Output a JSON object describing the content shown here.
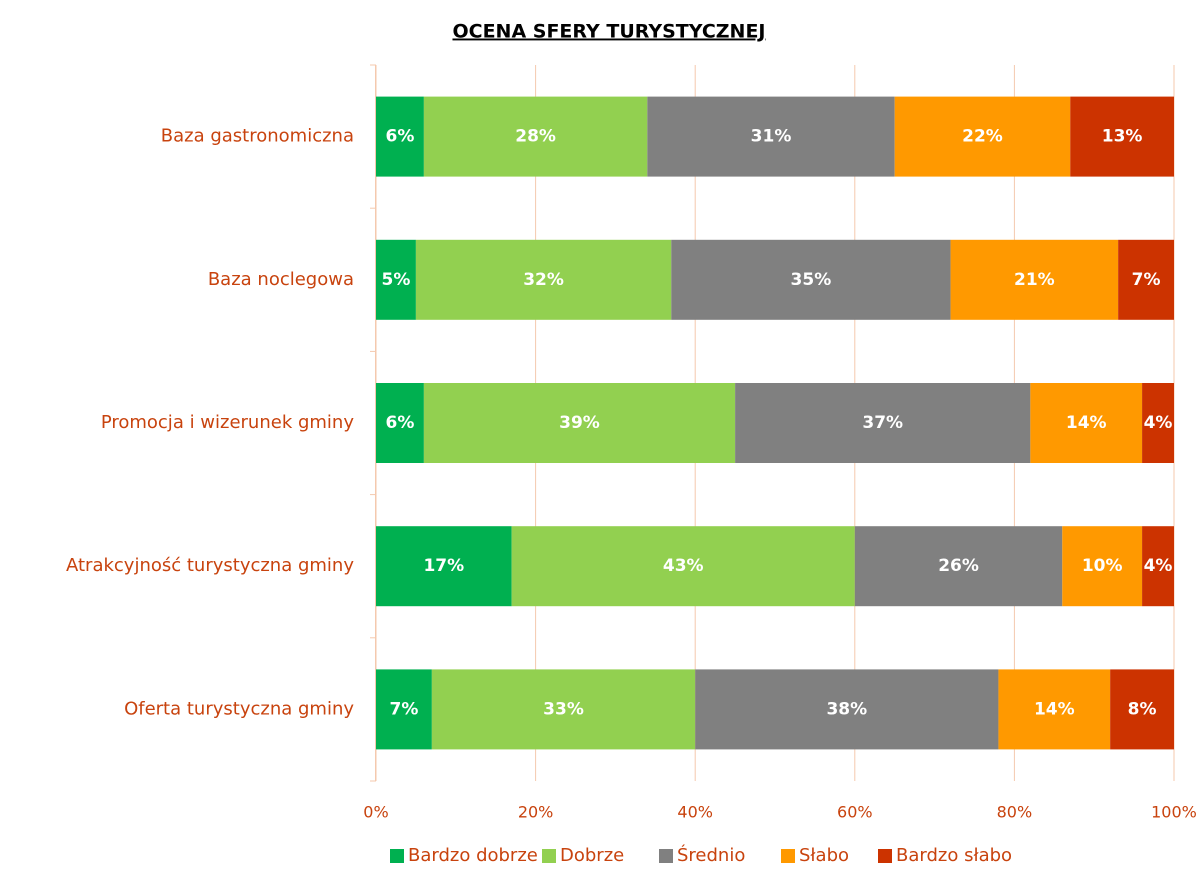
{
  "chart_data": {
    "type": "stacked_barh",
    "title": "OCENA SFERY TURYSTYCZNEJ",
    "categories": [
      "Baza gastronomiczna",
      "Baza noclegowa",
      "Promocja i wizerunek gminy",
      "Atrakcyjność turystyczna gminy",
      "Oferta turystyczna gminy"
    ],
    "series": [
      {
        "name": "Bardzo dobrze",
        "color": "#00b050",
        "values": [
          6,
          5,
          6,
          17,
          7
        ],
        "value_labels": [
          "6%",
          "5%",
          "6%",
          "17%",
          "7%"
        ]
      },
      {
        "name": "Dobrze",
        "color": "#92d050",
        "values": [
          28,
          32,
          39,
          43,
          33
        ],
        "value_labels": [
          "28%",
          "32%",
          "39%",
          "43%",
          "33%"
        ]
      },
      {
        "name": "Średnio",
        "color": "#808080",
        "values": [
          31,
          35,
          37,
          26,
          38
        ],
        "value_labels": [
          "31%",
          "35%",
          "37%",
          "26%",
          "38%"
        ]
      },
      {
        "name": "Słabo",
        "color": "#ff9900",
        "values": [
          22,
          21,
          14,
          10,
          14
        ],
        "value_labels": [
          "22%",
          "21%",
          "14%",
          "10%",
          "14%"
        ]
      },
      {
        "name": "Bardzo słabo",
        "color": "#cc3300",
        "values": [
          13,
          7,
          4,
          4,
          8
        ],
        "value_labels": [
          "13%",
          "7%",
          "4%",
          "4%",
          "8%"
        ]
      }
    ],
    "xlim": [
      0,
      100
    ],
    "xticks": [
      {
        "value": 0,
        "label": "0%"
      },
      {
        "value": 20,
        "label": "20%"
      },
      {
        "value": 40,
        "label": "40%"
      },
      {
        "value": 60,
        "label": "60%"
      },
      {
        "value": 80,
        "label": "80%"
      },
      {
        "value": 100,
        "label": "100%"
      }
    ],
    "grid": true,
    "legend": "bottom"
  }
}
